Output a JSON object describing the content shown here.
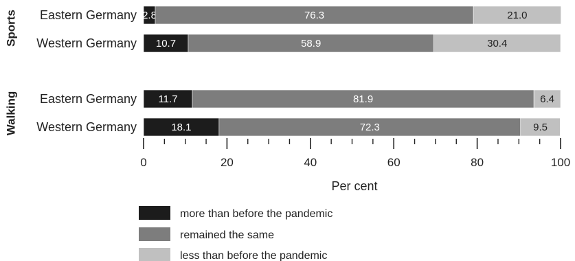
{
  "chart_data": {
    "type": "bar",
    "stacked": true,
    "orientation": "horizontal",
    "groups": [
      {
        "name": "Sports",
        "categories": [
          "Eastern Germany",
          "Western Germany"
        ]
      },
      {
        "name": "Walking",
        "categories": [
          "Eastern Germany",
          "Western Germany"
        ]
      }
    ],
    "series": [
      {
        "name": "more than before the pandemic",
        "color": "#1c1c1c",
        "label_color": "#ffffff",
        "values": [
          2.8,
          10.7,
          11.7,
          18.1
        ]
      },
      {
        "name": "remained the same",
        "color": "#7d7d7d",
        "label_color": "#ffffff",
        "values": [
          76.3,
          58.9,
          81.9,
          72.3
        ]
      },
      {
        "name": "less than before the pandemic",
        "color": "#c0c0c0",
        "label_color": "#222222",
        "values": [
          21.0,
          30.4,
          6.4,
          9.5
        ]
      }
    ],
    "value_labels": [
      [
        "2.8",
        "10.7",
        "11.7",
        "18.1"
      ],
      [
        "76.3",
        "58.9",
        "81.9",
        "72.3"
      ],
      [
        "21.0",
        "30.4",
        "6.4",
        "9.5"
      ]
    ],
    "xlim": [
      0,
      100
    ],
    "major_ticks": [
      0,
      20,
      40,
      60,
      80,
      100
    ],
    "tick_labels": [
      "0",
      "20",
      "40",
      "60",
      "80",
      "100"
    ],
    "minor_tick_step": 5,
    "xlabel": "Per cent",
    "legend_position": "bottom-left",
    "grid": false
  }
}
